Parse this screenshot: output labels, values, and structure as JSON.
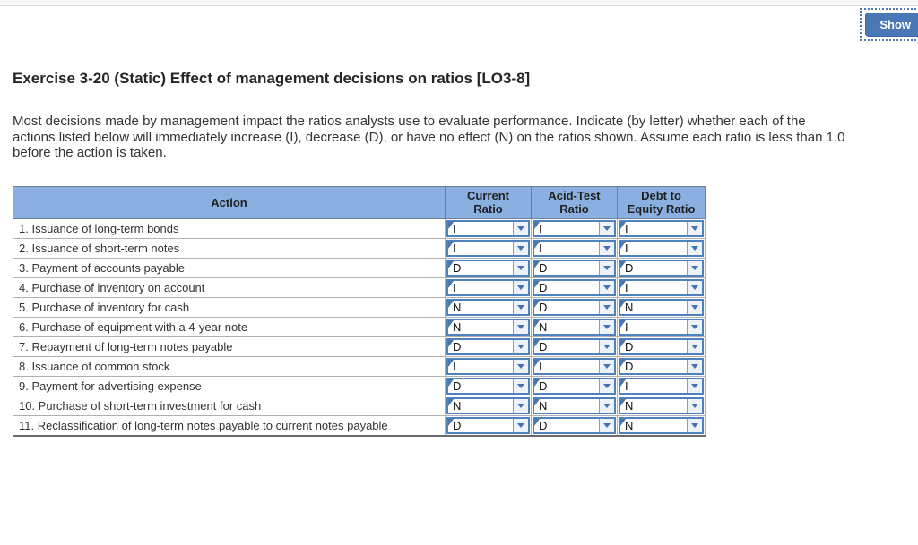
{
  "toolbar": {
    "show_button_label": "Show"
  },
  "exercise": {
    "title": "Exercise 3-20 (Static) Effect of management decisions on ratios [LO3-8]",
    "instructions": "Most decisions made by management impact the ratios analysts use to evaluate performance. Indicate (by letter) whether each of the actions listed below will immediately increase (I), decrease (D), or have no effect (N) on the ratios shown. Assume each ratio is less than 1.0 before the action is taken."
  },
  "table": {
    "headers": {
      "action": "Action",
      "current_ratio": "Current Ratio",
      "acid_test_ratio": "Acid-Test Ratio",
      "debt_to_equity_ratio": "Debt to Equity Ratio"
    },
    "rows": [
      {
        "action": "1. Issuance of long-term bonds",
        "current_ratio": "I",
        "acid_test_ratio": "I",
        "debt_to_equity_ratio": "I"
      },
      {
        "action": "2. Issuance of short-term notes",
        "current_ratio": "I",
        "acid_test_ratio": "I",
        "debt_to_equity_ratio": "I"
      },
      {
        "action": "3. Payment of accounts payable",
        "current_ratio": "D",
        "acid_test_ratio": "D",
        "debt_to_equity_ratio": "D"
      },
      {
        "action": "4. Purchase of inventory on account",
        "current_ratio": "I",
        "acid_test_ratio": "D",
        "debt_to_equity_ratio": "I"
      },
      {
        "action": "5. Purchase of inventory for cash",
        "current_ratio": "N",
        "acid_test_ratio": "D",
        "debt_to_equity_ratio": "N"
      },
      {
        "action": "6. Purchase of equipment with a 4-year note",
        "current_ratio": "N",
        "acid_test_ratio": "N",
        "debt_to_equity_ratio": "I"
      },
      {
        "action": "7. Repayment of long-term notes payable",
        "current_ratio": "D",
        "acid_test_ratio": "D",
        "debt_to_equity_ratio": "D"
      },
      {
        "action": "8. Issuance of common stock",
        "current_ratio": "I",
        "acid_test_ratio": "I",
        "debt_to_equity_ratio": "D"
      },
      {
        "action": "9. Payment for advertising expense",
        "current_ratio": "D",
        "acid_test_ratio": "D",
        "debt_to_equity_ratio": "I"
      },
      {
        "action": "10. Purchase of short-term investment for cash",
        "current_ratio": "N",
        "acid_test_ratio": "N",
        "debt_to_equity_ratio": "N"
      },
      {
        "action": "11. Reclassification of long-term notes payable to current notes payable",
        "current_ratio": "D",
        "acid_test_ratio": "D",
        "debt_to_equity_ratio": "N"
      }
    ]
  },
  "colors": {
    "header_bg": "#89b0e1",
    "dropdown_border": "#4f81bd",
    "show_button_bg": "#4a78b6"
  }
}
